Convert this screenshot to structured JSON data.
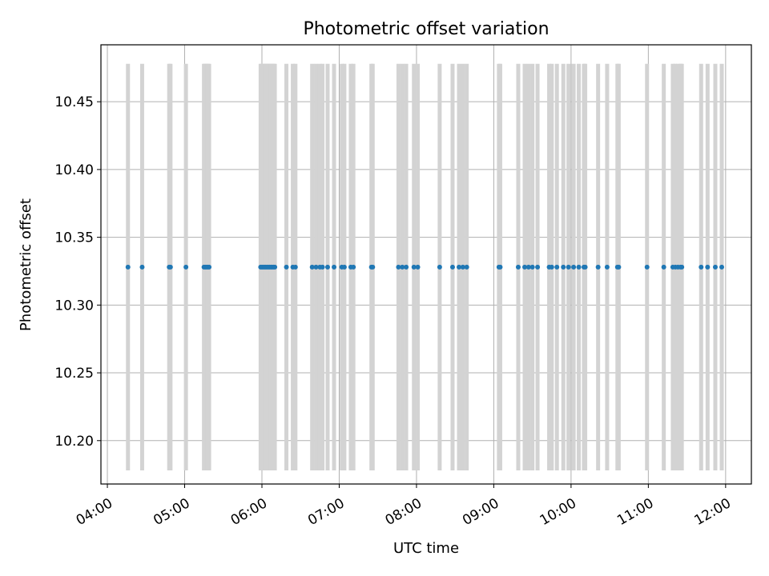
{
  "chart_data": {
    "type": "scatter",
    "title": "Photometric offset variation",
    "xlabel": "UTC time",
    "ylabel": "Photometric offset",
    "xlim": [
      "03:55",
      "12:20"
    ],
    "ylim": [
      10.168,
      10.492
    ],
    "x_ticks": [
      "04:00",
      "05:00",
      "06:00",
      "07:00",
      "08:00",
      "09:00",
      "10:00",
      "11:00",
      "12:00"
    ],
    "y_ticks": [
      "10.20",
      "10.25",
      "10.30",
      "10.35",
      "10.40",
      "10.45"
    ],
    "grid": true,
    "error_bar_range": [
      10.178,
      10.478
    ],
    "series": [
      {
        "color": "#1f77b4",
        "error_bar_color": "#d3d3d3",
        "x": [
          "04:16",
          "04:27",
          "04:48",
          "04:49",
          "05:01",
          "05:15",
          "05:16",
          "05:17",
          "05:18",
          "05:19",
          "05:59",
          "06:00",
          "06:01",
          "06:02",
          "06:03",
          "06:04",
          "06:05",
          "06:06",
          "06:07",
          "06:08",
          "06:09",
          "06:10",
          "06:19",
          "06:24",
          "06:26",
          "06:39",
          "06:42",
          "06:45",
          "06:47",
          "06:51",
          "06:56",
          "07:02",
          "07:04",
          "07:09",
          "07:11",
          "07:25",
          "07:26",
          "07:46",
          "07:49",
          "07:52",
          "07:58",
          "08:01",
          "08:18",
          "08:28",
          "08:33",
          "08:36",
          "08:39",
          "09:04",
          "09:05",
          "09:19",
          "09:24",
          "09:27",
          "09:30",
          "09:34",
          "09:43",
          "09:45",
          "09:49",
          "09:54",
          "09:58",
          "10:02",
          "10:06",
          "10:10",
          "10:11",
          "10:21",
          "10:28",
          "10:36",
          "10:37",
          "10:59",
          "11:12",
          "11:19",
          "11:21",
          "11:23",
          "11:25",
          "11:26",
          "11:41",
          "11:46",
          "11:52",
          "11:57"
        ],
        "y": [
          10.328,
          10.328,
          10.328,
          10.328,
          10.328,
          10.328,
          10.328,
          10.328,
          10.328,
          10.328,
          10.328,
          10.328,
          10.328,
          10.328,
          10.328,
          10.328,
          10.328,
          10.328,
          10.328,
          10.328,
          10.328,
          10.328,
          10.328,
          10.328,
          10.328,
          10.328,
          10.328,
          10.328,
          10.328,
          10.328,
          10.328,
          10.328,
          10.328,
          10.328,
          10.328,
          10.328,
          10.328,
          10.328,
          10.328,
          10.328,
          10.328,
          10.328,
          10.328,
          10.328,
          10.328,
          10.328,
          10.328,
          10.328,
          10.328,
          10.328,
          10.328,
          10.328,
          10.328,
          10.328,
          10.328,
          10.328,
          10.328,
          10.328,
          10.328,
          10.328,
          10.328,
          10.328,
          10.328,
          10.328,
          10.328,
          10.328,
          10.328,
          10.328,
          10.328,
          10.328,
          10.328,
          10.328,
          10.328,
          10.328,
          10.328,
          10.328,
          10.328,
          10.328
        ]
      }
    ]
  }
}
